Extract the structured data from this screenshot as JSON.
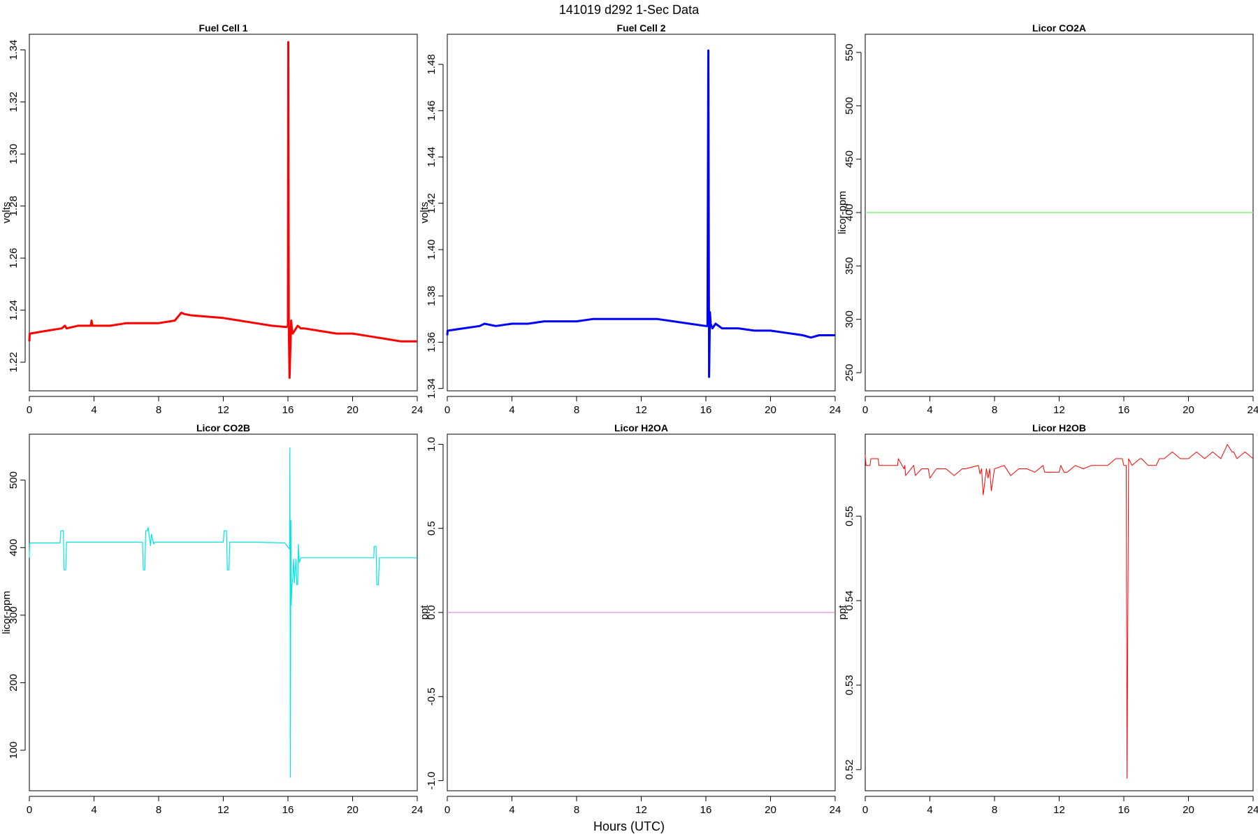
{
  "figure": {
    "title": "141019   d292   1-Sec Data",
    "xlabel": "Hours (UTC)"
  },
  "chart_data": [
    {
      "type": "line",
      "title": "Fuel Cell 1",
      "ylabel": "volts",
      "color": "#ff0000",
      "line_width": 3,
      "xlim": [
        0,
        24
      ],
      "ylim": [
        1.209,
        1.346
      ],
      "xticks": [
        0,
        4,
        8,
        12,
        16,
        20,
        24
      ],
      "yticks": [
        1.22,
        1.24,
        1.26,
        1.28,
        1.3,
        1.32,
        1.34
      ],
      "ytick_labels": [
        "1.22",
        "1.24",
        "1.26",
        "1.28",
        "1.30",
        "1.32",
        "1.34"
      ],
      "x": [
        0,
        0.02,
        0.05,
        1,
        2,
        2.2,
        2.3,
        3,
        3.8,
        3.85,
        3.9,
        5,
        6,
        7,
        8,
        9,
        9.4,
        9.6,
        10,
        11,
        12,
        13,
        14,
        15,
        15.9,
        16.0,
        16.02,
        16.05,
        16.1,
        16.2,
        16.25,
        16.3,
        16.4,
        16.6,
        16.8,
        17,
        18,
        19,
        20,
        21,
        22,
        22.5,
        23,
        24
      ],
      "y": [
        1.228,
        1.231,
        1.231,
        1.232,
        1.233,
        1.234,
        1.233,
        1.234,
        1.234,
        1.236,
        1.234,
        1.234,
        1.235,
        1.235,
        1.235,
        1.236,
        1.239,
        1.2385,
        1.238,
        1.2375,
        1.237,
        1.236,
        1.235,
        1.234,
        1.2335,
        1.234,
        1.343,
        1.2345,
        1.214,
        1.236,
        1.232,
        1.231,
        1.232,
        1.234,
        1.233,
        1.233,
        1.232,
        1.231,
        1.231,
        1.23,
        1.229,
        1.2285,
        1.228,
        1.228
      ]
    },
    {
      "type": "line",
      "title": "Fuel Cell 2",
      "ylabel": "volts",
      "color": "#0000ff",
      "line_width": 3,
      "xlim": [
        0,
        24
      ],
      "ylim": [
        1.339,
        1.493
      ],
      "xticks": [
        0,
        4,
        8,
        12,
        16,
        20,
        24
      ],
      "yticks": [
        1.34,
        1.36,
        1.38,
        1.4,
        1.42,
        1.44,
        1.46,
        1.48
      ],
      "ytick_labels": [
        "1.34",
        "1.36",
        "1.38",
        "1.40",
        "1.42",
        "1.44",
        "1.46",
        "1.48"
      ],
      "x": [
        0,
        0.02,
        0.05,
        1,
        2,
        2.3,
        3,
        4,
        5,
        6,
        7,
        8,
        9,
        10,
        11,
        12,
        13,
        14,
        15,
        16.0,
        16.1,
        16.15,
        16.2,
        16.25,
        16.3,
        16.4,
        16.6,
        17,
        18,
        19,
        20,
        21,
        22,
        22.5,
        23,
        24
      ],
      "y": [
        1.363,
        1.365,
        1.365,
        1.366,
        1.367,
        1.368,
        1.367,
        1.368,
        1.368,
        1.369,
        1.369,
        1.369,
        1.37,
        1.37,
        1.37,
        1.37,
        1.37,
        1.369,
        1.368,
        1.367,
        1.367,
        1.486,
        1.345,
        1.373,
        1.368,
        1.366,
        1.368,
        1.366,
        1.366,
        1.365,
        1.365,
        1.364,
        1.363,
        1.362,
        1.363,
        1.363
      ]
    },
    {
      "type": "line",
      "title": "Licor CO2A",
      "ylabel": "licor-ppm",
      "color": "#7cfc7c",
      "line_width": 1.5,
      "xlim": [
        0,
        24
      ],
      "ylim": [
        233,
        567
      ],
      "xticks": [
        0,
        4,
        8,
        12,
        16,
        20,
        24
      ],
      "yticks": [
        250,
        300,
        350,
        400,
        450,
        500,
        550
      ],
      "ytick_labels": [
        "250",
        "300",
        "350",
        "400",
        "450",
        "500",
        "550"
      ],
      "x": [
        0,
        24
      ],
      "y": [
        400,
        400
      ]
    },
    {
      "type": "line",
      "title": "Licor CO2B",
      "ylabel": "licor-ppm",
      "color": "#00e5e5",
      "line_width": 1.2,
      "xlim": [
        0,
        24
      ],
      "ylim": [
        40,
        568
      ],
      "xticks": [
        0,
        4,
        8,
        12,
        16,
        20,
        24
      ],
      "yticks": [
        100,
        200,
        300,
        400,
        500
      ],
      "ytick_labels": [
        "100",
        "200",
        "300",
        "400",
        "500"
      ],
      "x": [
        0,
        0.02,
        0.05,
        1,
        1.9,
        1.95,
        2.1,
        2.15,
        2.25,
        2.3,
        4,
        6,
        7.0,
        7.05,
        7.15,
        7.2,
        7.3,
        7.35,
        7.5,
        7.55,
        7.7,
        7.75,
        10,
        12.0,
        12.05,
        12.2,
        12.25,
        12.35,
        12.4,
        14,
        15.8,
        16.1,
        16.12,
        16.15,
        16.18,
        16.2,
        16.25,
        16.3,
        16.35,
        16.4,
        16.5,
        16.55,
        16.6,
        16.65,
        16.7,
        16.8,
        16.85,
        17,
        18,
        20,
        21.3,
        21.35,
        21.45,
        21.5,
        21.6,
        21.65,
        22,
        23,
        24
      ],
      "y": [
        385,
        407,
        407,
        407,
        407,
        425,
        425,
        367,
        367,
        408,
        408,
        408,
        408,
        367,
        367,
        425,
        425,
        430,
        403,
        420,
        405,
        408,
        408,
        408,
        425,
        425,
        367,
        367,
        408,
        408,
        407,
        398,
        548,
        60,
        440,
        315,
        345,
        355,
        383,
        348,
        383,
        345,
        345,
        405,
        378,
        385,
        385,
        385,
        385,
        385,
        385,
        402,
        402,
        345,
        345,
        385,
        385,
        385,
        385
      ]
    },
    {
      "type": "line",
      "title": "Licor H2OA",
      "ylabel": "ppt",
      "color": "#da70d6",
      "line_width": 1,
      "xlim": [
        0,
        24
      ],
      "ylim": [
        -1.06,
        1.06
      ],
      "xticks": [
        0,
        4,
        8,
        12,
        16,
        20,
        24
      ],
      "yticks": [
        -1.0,
        -0.5,
        0.0,
        0.5,
        1.0
      ],
      "ytick_labels": [
        "-1.0",
        "-0.5",
        "0.0",
        "0.5",
        "1.0"
      ],
      "x": [
        0,
        24
      ],
      "y": [
        0,
        0
      ]
    },
    {
      "type": "line",
      "title": "Licor H2OB",
      "ylabel": "ppt",
      "color": "#ff0000",
      "line_width": 1,
      "xlim": [
        0,
        24
      ],
      "ylim": [
        0.5175,
        0.5597
      ],
      "xticks": [
        0,
        4,
        8,
        12,
        16,
        20,
        24
      ],
      "yticks": [
        0.52,
        0.53,
        0.54,
        0.55
      ],
      "ytick_labels": [
        "0.52",
        "0.53",
        "0.54",
        "0.55"
      ],
      "x": [
        0,
        0.02,
        0.05,
        0.3,
        0.35,
        0.8,
        0.85,
        1.2,
        1.25,
        2.0,
        2.05,
        2.4,
        2.45,
        2.5,
        3.0,
        3.1,
        3.5,
        3.9,
        4.0,
        4.4,
        4.5,
        5.0,
        5.5,
        6.0,
        6.2,
        7.0,
        7.1,
        7.2,
        7.3,
        7.5,
        7.6,
        7.7,
        7.8,
        8.0,
        8.6,
        9.0,
        9.5,
        10.0,
        10.5,
        11.0,
        11.1,
        11.5,
        12.0,
        12.1,
        12.3,
        12.5,
        13.0,
        13.5,
        14.0,
        14.5,
        15.0,
        15.5,
        15.9,
        16.0,
        16.05,
        16.1,
        16.15,
        16.2,
        16.3,
        16.5,
        17.0,
        17.1,
        17.5,
        18.0,
        18.2,
        18.5,
        19.0,
        19.5,
        20.0,
        20.5,
        21.0,
        21.5,
        22.0,
        22.3,
        22.4,
        22.7,
        22.8,
        23.0,
        23.5,
        24.0
      ],
      "y": [
        0.5572,
        0.5566,
        0.556,
        0.556,
        0.5568,
        0.5568,
        0.556,
        0.556,
        0.556,
        0.556,
        0.5568,
        0.5556,
        0.556,
        0.5548,
        0.556,
        0.5548,
        0.5556,
        0.5556,
        0.5545,
        0.5556,
        0.5556,
        0.5556,
        0.5548,
        0.5556,
        0.5556,
        0.556,
        0.555,
        0.5556,
        0.5525,
        0.5556,
        0.5545,
        0.5556,
        0.553,
        0.5556,
        0.556,
        0.5548,
        0.5556,
        0.5556,
        0.5552,
        0.556,
        0.5552,
        0.5552,
        0.5552,
        0.556,
        0.5552,
        0.5552,
        0.556,
        0.5556,
        0.556,
        0.556,
        0.556,
        0.5568,
        0.5568,
        0.556,
        0.556,
        0.556,
        0.556,
        0.519,
        0.5568,
        0.556,
        0.5568,
        0.5568,
        0.556,
        0.556,
        0.5568,
        0.5568,
        0.5576,
        0.5568,
        0.5568,
        0.5576,
        0.5568,
        0.5576,
        0.5568,
        0.558,
        0.5585,
        0.5576,
        0.5576,
        0.5568,
        0.5576,
        0.5568
      ]
    }
  ]
}
